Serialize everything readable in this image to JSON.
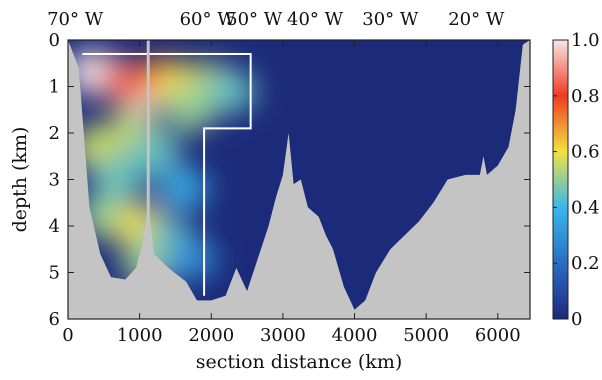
{
  "chart_data": {
    "type": "heatmap",
    "title": "",
    "xlabel": "section distance (km)",
    "ylabel": "depth (km)",
    "xlim": [
      0,
      6450
    ],
    "ylim": [
      6,
      0
    ],
    "x_ticks": [
      0,
      1000,
      2000,
      3000,
      4000,
      5000,
      6000
    ],
    "x_tick_labels": [
      "0",
      "1000",
      "2000",
      "3000",
      "4000",
      "5000",
      "6000"
    ],
    "y_ticks": [
      0,
      1,
      2,
      3,
      4,
      5,
      6
    ],
    "y_tick_labels": [
      "0",
      "1",
      "2",
      "3",
      "4",
      "5",
      "6"
    ],
    "top_axis": {
      "positions_km": [
        100,
        1950,
        2600,
        3450,
        4500,
        5700
      ],
      "labels": [
        "70° W",
        "60° W",
        "50° W",
        "40° W",
        "30° W",
        "20° W"
      ]
    },
    "colorbar": {
      "range": [
        0,
        1
      ],
      "ticks": [
        0,
        0.2,
        0.4,
        0.6,
        0.8,
        1.0
      ],
      "tick_labels": [
        "0",
        "0.2",
        "0.4",
        "0.6",
        "0.8",
        "1.0"
      ],
      "colors": [
        "#1c2a7a",
        "#2b6cc4",
        "#39b8ea",
        "#f2e23f",
        "#ef3b24",
        "#f7e6e6"
      ]
    },
    "background_value": 0,
    "outline_region_km": [
      [
        200,
        0.3
      ],
      [
        2550,
        0.3
      ],
      [
        2550,
        1.9
      ],
      [
        1900,
        1.9
      ],
      [
        1900,
        5.5
      ]
    ],
    "vertical_line_km": 1120,
    "bathymetry_km": [
      [
        0,
        0
      ],
      [
        150,
        0.6
      ],
      [
        300,
        3.6
      ],
      [
        450,
        4.6
      ],
      [
        600,
        5.1
      ],
      [
        800,
        5.15
      ],
      [
        950,
        4.9
      ],
      [
        1050,
        4.3
      ],
      [
        1120,
        3.5
      ],
      [
        1200,
        4.6
      ],
      [
        1400,
        4.9
      ],
      [
        1650,
        5.2
      ],
      [
        1800,
        5.6
      ],
      [
        2000,
        5.6
      ],
      [
        2200,
        5.5
      ],
      [
        2350,
        4.9
      ],
      [
        2500,
        5.4
      ],
      [
        2650,
        4.7
      ],
      [
        2800,
        4.0
      ],
      [
        2900,
        3.4
      ],
      [
        3000,
        2.9
      ],
      [
        3080,
        2.0
      ],
      [
        3150,
        3.1
      ],
      [
        3250,
        3.0
      ],
      [
        3350,
        3.6
      ],
      [
        3500,
        3.8
      ],
      [
        3600,
        4.2
      ],
      [
        3700,
        4.5
      ],
      [
        3850,
        5.3
      ],
      [
        4000,
        5.8
      ],
      [
        4150,
        5.6
      ],
      [
        4300,
        5.0
      ],
      [
        4500,
        4.5
      ],
      [
        4700,
        4.2
      ],
      [
        4900,
        3.9
      ],
      [
        5100,
        3.5
      ],
      [
        5300,
        3.0
      ],
      [
        5550,
        2.9
      ],
      [
        5750,
        2.9
      ],
      [
        5800,
        2.5
      ],
      [
        5850,
        2.9
      ],
      [
        6000,
        2.7
      ],
      [
        6150,
        2.3
      ],
      [
        6250,
        1.5
      ],
      [
        6350,
        0.1
      ],
      [
        6450,
        0
      ]
    ],
    "field_blobs": [
      {
        "x": 1000,
        "y": 1.1,
        "value": 1.0
      },
      {
        "x": 350,
        "y": 0.7,
        "value": 1.0
      },
      {
        "x": 800,
        "y": 0.9,
        "value": 0.85
      },
      {
        "x": 1350,
        "y": 0.85,
        "value": 0.75
      },
      {
        "x": 1550,
        "y": 1.0,
        "value": 0.6
      },
      {
        "x": 1950,
        "y": 0.95,
        "value": 0.55
      },
      {
        "x": 2250,
        "y": 1.1,
        "value": 0.45
      },
      {
        "x": 1700,
        "y": 1.5,
        "value": 0.5
      },
      {
        "x": 900,
        "y": 2.0,
        "value": 0.55
      },
      {
        "x": 400,
        "y": 2.3,
        "value": 0.55
      },
      {
        "x": 1200,
        "y": 2.4,
        "value": 0.45
      },
      {
        "x": 700,
        "y": 3.0,
        "value": 0.45
      },
      {
        "x": 500,
        "y": 3.8,
        "value": 0.5
      },
      {
        "x": 1000,
        "y": 4.0,
        "value": 0.6
      },
      {
        "x": 1400,
        "y": 4.3,
        "value": 0.45
      },
      {
        "x": 1100,
        "y": 4.8,
        "value": 0.5
      },
      {
        "x": 1600,
        "y": 3.2,
        "value": 0.35
      },
      {
        "x": 1700,
        "y": 4.7,
        "value": 0.3
      }
    ]
  }
}
